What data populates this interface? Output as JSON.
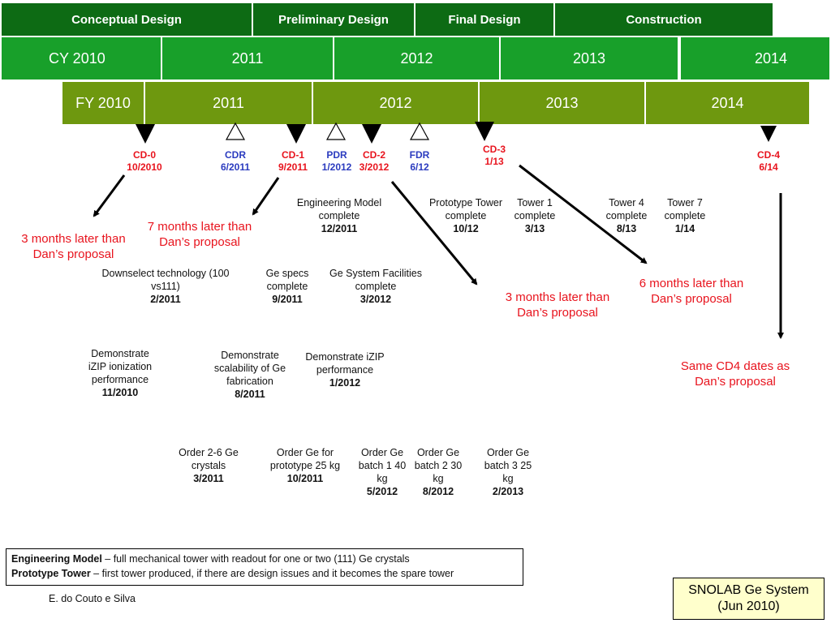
{
  "phases": [
    "Conceptual Design",
    "Preliminary  Design",
    "Final Design",
    "Construction"
  ],
  "calendar_years": [
    "CY 2010",
    "2011",
    "2012",
    "2013",
    "2014"
  ],
  "fiscal_years": [
    "FY 2010",
    "2011",
    "2012",
    "2013",
    "2014"
  ],
  "milestones": [
    {
      "label": "CD-0",
      "date": "10/2010"
    },
    {
      "label": "CDR",
      "date": "6/2011"
    },
    {
      "label": "CD-1",
      "date": "9/2011"
    },
    {
      "label": "PDR",
      "date": "1/2012"
    },
    {
      "label": "CD-2",
      "date": "3/2012"
    },
    {
      "label": "FDR",
      "date": "6/12"
    },
    {
      "label": "CD-3",
      "date": "1/13"
    },
    {
      "label": "CD-4",
      "date": "6/14"
    }
  ],
  "notes": [
    "3 months later than Dan’s proposal",
    "7 months later than Dan’s proposal",
    "3 months later than Dan’s proposal",
    "6 months later than Dan’s proposal",
    "Same CD4 dates as Dan’s proposal"
  ],
  "activities": [
    {
      "text": "Engineering Model complete",
      "date": "12/2011"
    },
    {
      "text": "Prototype Tower complete",
      "date": "10/12"
    },
    {
      "text": "Tower 1 complete",
      "date": "3/13"
    },
    {
      "text": "Tower 4 complete",
      "date": "8/13"
    },
    {
      "text": "Tower 7 complete",
      "date": "1/14"
    },
    {
      "text": "Downselect technology (100 vs111)",
      "date": "2/2011"
    },
    {
      "text": "Ge specs complete",
      "date": "9/2011"
    },
    {
      "text": "Ge System Facilities complete",
      "date": "3/2012"
    },
    {
      "text": "Demonstrate iZIP ionization performance",
      "date": "11/2010"
    },
    {
      "text": "Demonstrate scalability of Ge fabrication",
      "date": "8/2011"
    },
    {
      "text": "Demonstrate iZIP performance",
      "date": "1/2012"
    },
    {
      "text": "Order 2-6 Ge crystals",
      "date": "3/2011"
    },
    {
      "text": "Order Ge for prototype 25 kg",
      "date": "10/2011"
    },
    {
      "text": "Order Ge batch 1 40 kg",
      "date": "5/2012"
    },
    {
      "text": "Order Ge batch 2 30 kg",
      "date": "8/2012"
    },
    {
      "text": "Order Ge batch 3 25 kg",
      "date": "2/2013"
    }
  ],
  "legend": {
    "term1": "Engineering Model",
    "def1": " – full mechanical tower with readout for one or two (111) Ge crystals",
    "term2": "Prototype Tower",
    "def2": " – first tower produced, if there are design issues and it becomes the spare tower"
  },
  "author": "E. do Couto e Silva",
  "title": {
    "line1": "SNOLAB Ge System",
    "line2": "(Jun 2010)"
  }
}
